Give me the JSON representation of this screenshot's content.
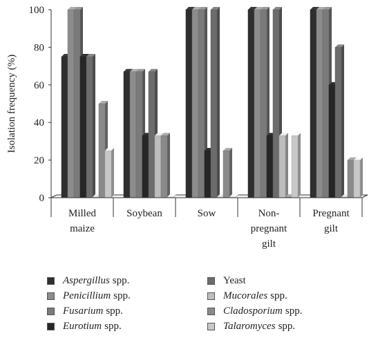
{
  "chart_data": {
    "type": "bar",
    "ylabel": "Isolation frequency (%)",
    "ylim": [
      0,
      100
    ],
    "yticks": [
      "0",
      "20",
      "40",
      "60",
      "80",
      "100"
    ],
    "grid": false,
    "legend_position": "bottom",
    "categories": [
      [
        "Milled",
        "maize"
      ],
      [
        "Soybean"
      ],
      [
        "Sow"
      ],
      [
        "Non-",
        "pregnant",
        "gilt"
      ],
      [
        "Pregnant",
        "gilt"
      ]
    ],
    "series": [
      {
        "name": "Aspergillus",
        "suffix": "spp.",
        "italic": true,
        "color": "#2e2e2e",
        "values": [
          75,
          67,
          100,
          100,
          100
        ]
      },
      {
        "name": "Penicillium",
        "suffix": "spp.",
        "italic": true,
        "color": "#8c8c8c",
        "values": [
          100,
          67,
          100,
          100,
          100
        ]
      },
      {
        "name": "Fusarium",
        "suffix": "spp.",
        "italic": true,
        "color": "#7a7a7a",
        "values": [
          100,
          67,
          100,
          100,
          100
        ]
      },
      {
        "name": "Eurotium",
        "suffix": "spp.",
        "italic": true,
        "color": "#262626",
        "values": [
          75,
          33,
          25,
          33,
          60
        ]
      },
      {
        "name": "Yeast",
        "suffix": "",
        "italic": false,
        "color": "#6c6c6c",
        "values": [
          75,
          67,
          100,
          100,
          80
        ]
      },
      {
        "name": "Mucorales",
        "suffix": "spp.",
        "italic": true,
        "color": "#bdbdbd",
        "values": [
          0,
          33,
          0,
          33,
          0
        ]
      },
      {
        "name": "Cladosporium",
        "suffix": "spp.",
        "italic": true,
        "color": "#8a8a8a",
        "values": [
          50,
          33,
          25,
          0,
          20
        ]
      },
      {
        "name": "Talaromyces",
        "suffix": "spp.",
        "italic": true,
        "color": "#c8c8c8",
        "values": [
          25,
          0,
          0,
          33,
          20
        ]
      }
    ]
  }
}
